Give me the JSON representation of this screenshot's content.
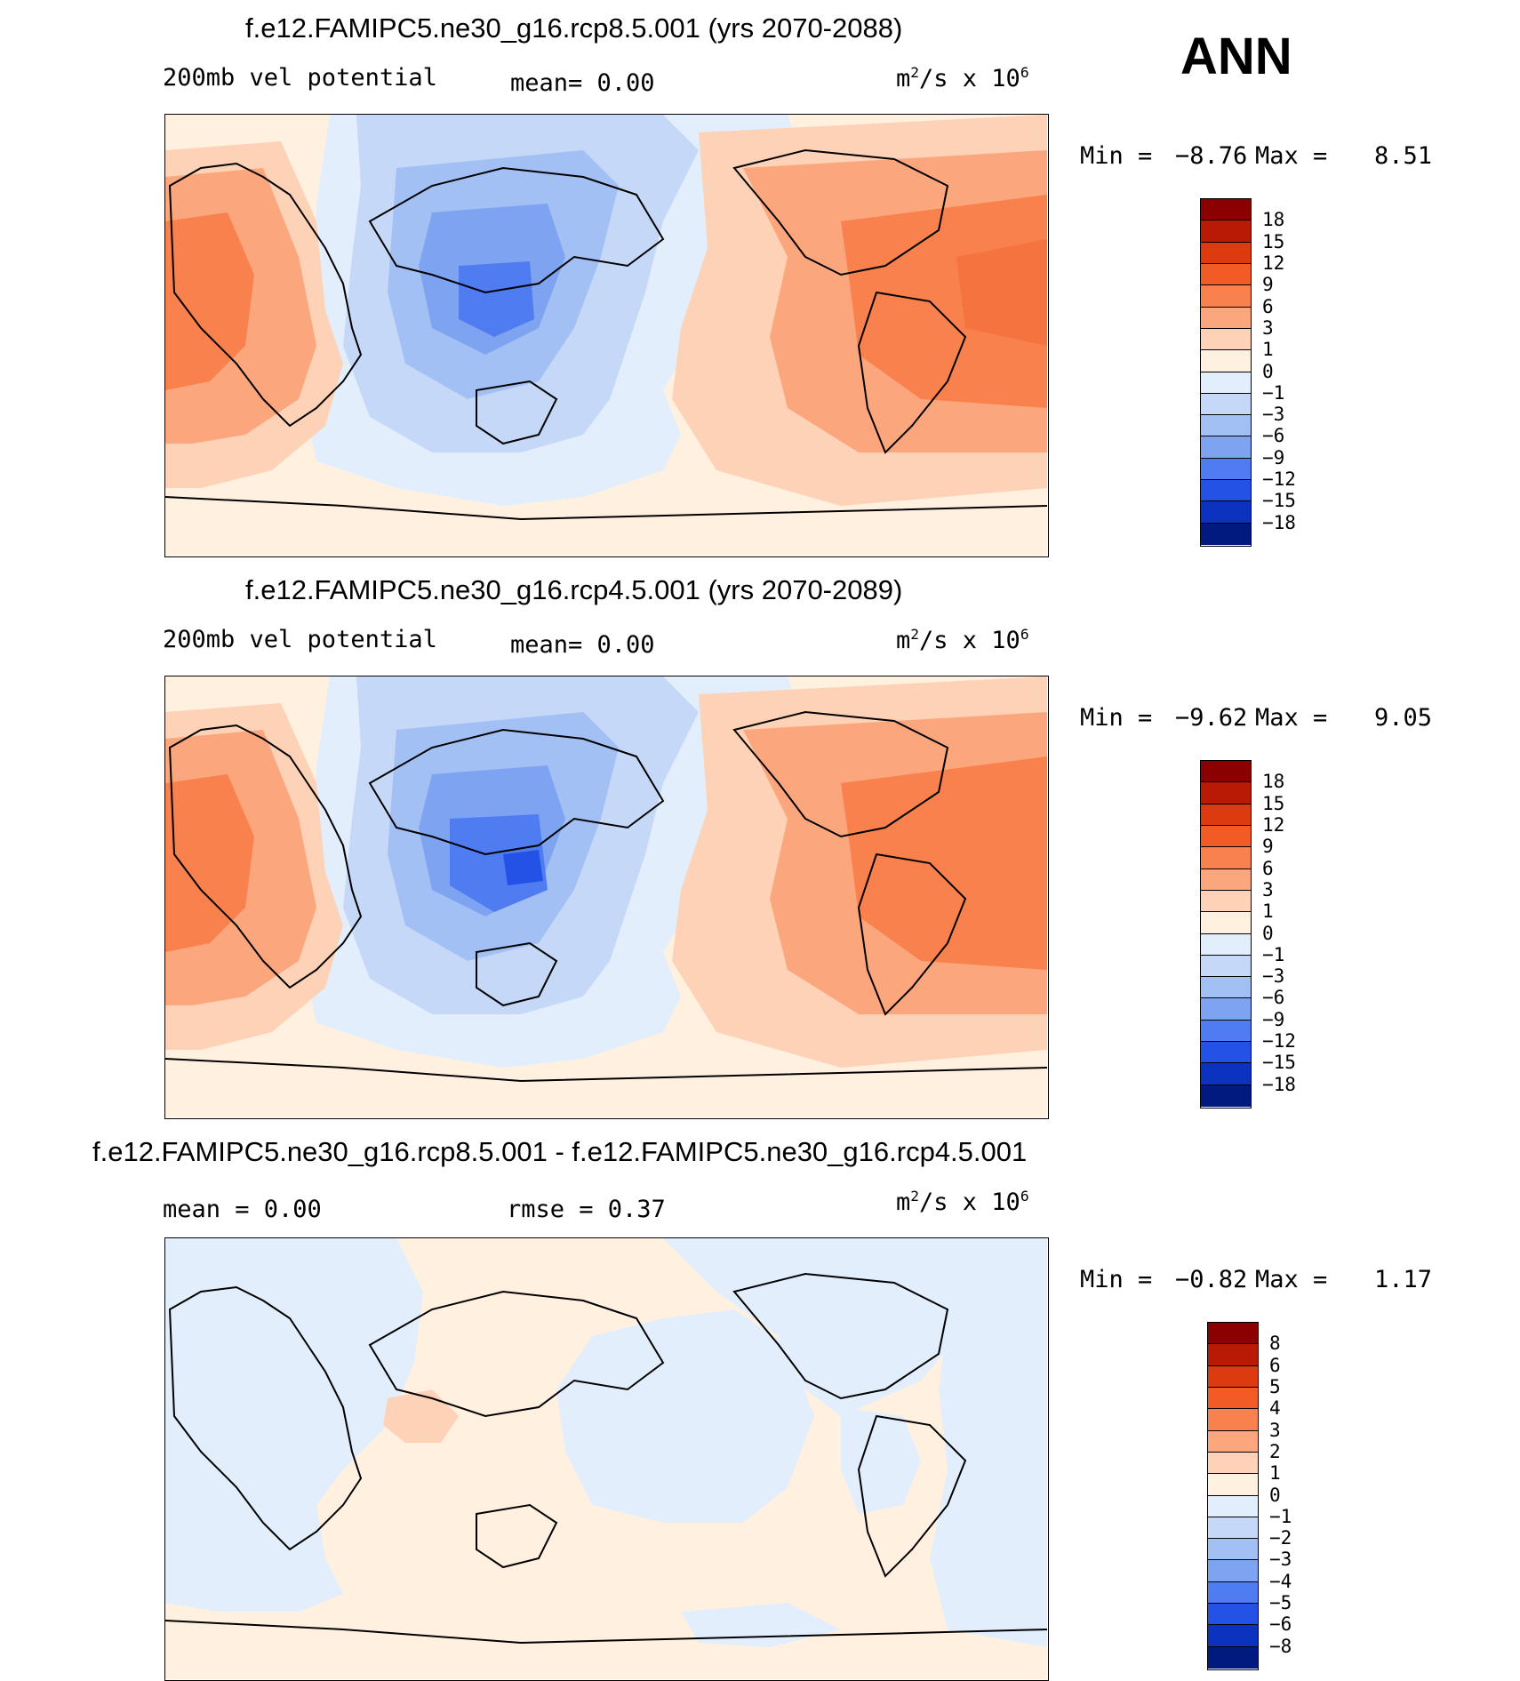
{
  "ann_label": "ANN",
  "panels": [
    {
      "title": "f.e12.FAMIPC5.ne30_g16.rcp8.5.001 (yrs 2070-2088)",
      "left_label": "200mb vel potential",
      "mid_label": "mean=   0.00",
      "units": "m",
      "units_rest": "/s x 10",
      "units_exp": "6",
      "units_sq": "2",
      "min_label": "Min =",
      "min_value": "−8.76",
      "max_label": "Max =",
      "max_value": "8.51",
      "levels": [
        "18",
        "15",
        "12",
        "9",
        "6",
        "3",
        "1",
        "0",
        "−1",
        "−3",
        "−6",
        "−9",
        "−12",
        "−15",
        "−18"
      ],
      "colors": [
        "#8b0000",
        "#b81a06",
        "#de3a10",
        "#f25a26",
        "#f8814d",
        "#fba67d",
        "#fdd2b6",
        "#fff0e0",
        "#e2eefb",
        "#c5d8f7",
        "#a3c0f4",
        "#7ea3f0",
        "#4f7cf0",
        "#2552e6",
        "#0c33c0",
        "#001a80"
      ]
    },
    {
      "title": "f.e12.FAMIPC5.ne30_g16.rcp4.5.001 (yrs 2070-2089)",
      "left_label": "200mb vel potential",
      "mid_label": "mean=   0.00",
      "units": "m",
      "units_rest": "/s x 10",
      "units_exp": "6",
      "units_sq": "2",
      "min_label": "Min =",
      "min_value": "−9.62",
      "max_label": "Max =",
      "max_value": "9.05",
      "levels": [
        "18",
        "15",
        "12",
        "9",
        "6",
        "3",
        "1",
        "0",
        "−1",
        "−3",
        "−6",
        "−9",
        "−12",
        "−15",
        "−18"
      ],
      "colors": [
        "#8b0000",
        "#b81a06",
        "#de3a10",
        "#f25a26",
        "#f8814d",
        "#fba67d",
        "#fdd2b6",
        "#fff0e0",
        "#e2eefb",
        "#c5d8f7",
        "#a3c0f4",
        "#7ea3f0",
        "#4f7cf0",
        "#2552e6",
        "#0c33c0",
        "#001a80"
      ]
    },
    {
      "title": "f.e12.FAMIPC5.ne30_g16.rcp8.5.001 - f.e12.FAMIPC5.ne30_g16.rcp4.5.001",
      "left_label": "mean =   0.00",
      "mid_label": "rmse =   0.37",
      "units": "m",
      "units_rest": "/s x 10",
      "units_exp": "6",
      "units_sq": "2",
      "min_label": "Min =",
      "min_value": "−0.82",
      "max_label": "Max =",
      "max_value": "1.17",
      "levels": [
        "8",
        "6",
        "5",
        "4",
        "3",
        "2",
        "1",
        "0",
        "−1",
        "−2",
        "−3",
        "−4",
        "−5",
        "−6",
        "−8"
      ],
      "colors": [
        "#8b0000",
        "#b81a06",
        "#de3a10",
        "#f25a26",
        "#f8814d",
        "#fba67d",
        "#fdd2b6",
        "#fff0e0",
        "#e2eefb",
        "#c5d8f7",
        "#a3c0f4",
        "#7ea3f0",
        "#4f7cf0",
        "#2552e6",
        "#0c33c0",
        "#001a80"
      ]
    }
  ]
}
